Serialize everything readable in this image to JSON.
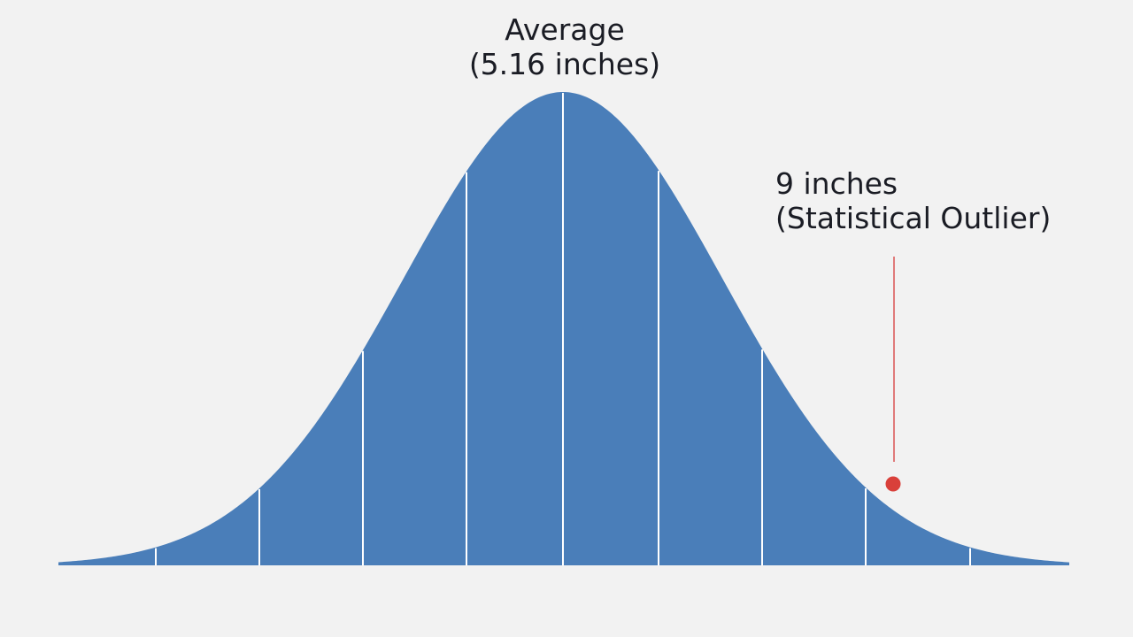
{
  "chart_data": {
    "type": "area",
    "title": "",
    "xlabel": "",
    "ylabel": "",
    "description": "Normal distribution bell curve, divided into vertical bands",
    "mean": 5.16,
    "unit": "inches",
    "grid": false,
    "legend": null,
    "band_dividers_count": 9,
    "annotations": [
      {
        "id": "average",
        "line1": "Average",
        "line2": "(5.16 inches)",
        "x_value": 5.16
      },
      {
        "id": "outlier",
        "line1": "9 inches",
        "line2": "(Statistical Outlier)",
        "x_value": 9,
        "marker_color": "#d9403a"
      }
    ],
    "colors": {
      "fill": "#4a7eb9",
      "background": "#f2f2f2",
      "divider": "#ffffff",
      "outlier_marker": "#d9403a",
      "outlier_line": "#e07a7a"
    }
  },
  "labels": {
    "average_line1": "Average",
    "average_line2": "(5.16 inches)",
    "outlier_line1": "9 inches",
    "outlier_line2": "(Statistical Outlier)"
  }
}
